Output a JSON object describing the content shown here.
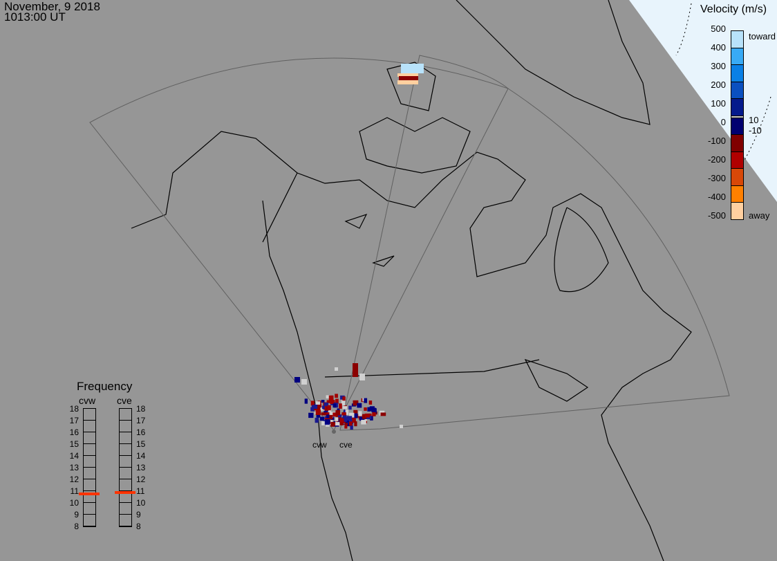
{
  "header": {
    "date": "November, 9 2018",
    "time": "1013:00 UT"
  },
  "legend": {
    "title": "Velocity (m/s)",
    "ticks": [
      "500",
      "400",
      "300",
      "200",
      "100",
      "0",
      "-100",
      "-200",
      "-300",
      "-400",
      "-500"
    ],
    "toward_label": "toward",
    "away_label": "away",
    "small_pos": "10",
    "small_neg": "-10",
    "colors": [
      "#b8e2fa",
      "#38aaf5",
      "#0a80e6",
      "#0a50c0",
      "#041a8c",
      "#000070",
      "#800000",
      "#b00000",
      "#d84808",
      "#ff8000",
      "#ffd0a0"
    ],
    "zero_color": "#c8c8c8"
  },
  "frequency": {
    "title": "Frequency",
    "radars": [
      {
        "name": "cvw",
        "freq_mhz": 10.7
      },
      {
        "name": "cve",
        "freq_mhz": 10.8
      }
    ],
    "scale": [
      "18",
      "17",
      "16",
      "15",
      "14",
      "13",
      "12",
      "11",
      "10",
      "9",
      "8"
    ],
    "min": 8,
    "max": 18,
    "marker_color": "#ff3300"
  },
  "sites": {
    "cvw": "cvw",
    "cve": "cve"
  },
  "colors": {
    "background": "#969696",
    "daylight": "#e8f4fc",
    "fov": "#606060",
    "coast": "#000000"
  }
}
